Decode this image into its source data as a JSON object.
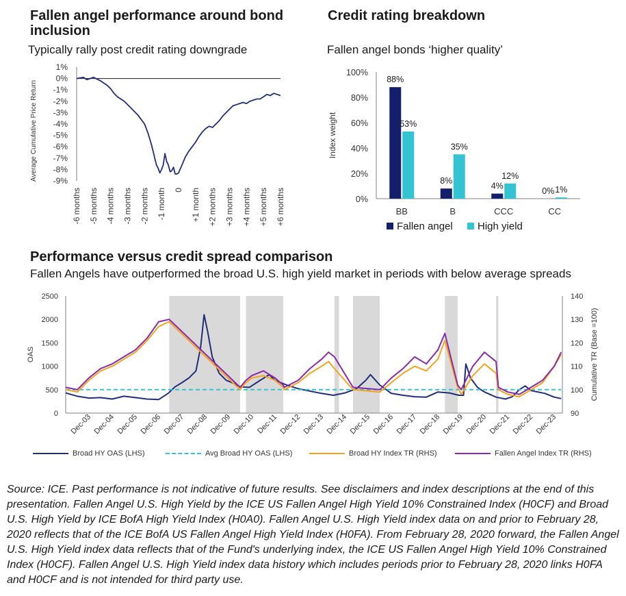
{
  "panel1": {
    "title": "Fallen angel performance around bond inclusion",
    "subtitle": "Typically rally post credit rating downgrade"
  },
  "panel2": {
    "title": "Credit rating breakdown",
    "subtitle": "Fallen angel bonds ‘higher quality’"
  },
  "panel3": {
    "title": "Performance versus credit spread comparison",
    "subtitle": "Fallen Angels have outperformed the broad U.S. high yield market in periods with below average spreads"
  },
  "source_text": "Source: ICE. Past performance is not indicative of future results. See disclaimers and index descriptions at the end of this presentation. Fallen Angel U.S. High Yield by the ICE US Fallen Angel High Yield 10% Constrained Index (H0CF) and Broad U.S. High Yield by ICE BofA High Yield Index (H0A0). Fallen Angel U.S. High Yield index data on and prior to February 28, 2020 reflects that of the ICE BofA US Fallen Angel High Yield Index (H0FA). From February 28, 2020 forward, the Fallen Angel U.S. High Yield index data reflects that of the Fund's underlying index, the ICE US Fallen Angel High Yield 10% Constrained Index (H0CF). Fallen Angel U.S. High Yield index data history which includes periods prior to February 28, 2020 links H0FA and H0CF and is not intended for third party use.",
  "chart_data": [
    {
      "type": "line",
      "ylabel": "Average Cumulative Price Return",
      "ylim": [
        -9,
        1
      ],
      "ytick_labels": [
        "1%",
        "0%",
        "-1%",
        "-2%",
        "-3%",
        "-4%",
        "-5%",
        "-6%",
        "-7%",
        "-8%",
        "-9%"
      ],
      "xtick_labels": [
        "-6 months",
        "-5 months",
        "-4 months",
        "-3 months",
        "-2 months",
        "-1 month",
        "0",
        "+1 month",
        "+2 months",
        "+3 months",
        "+4 months",
        "+5 months",
        "+6 months"
      ],
      "x": [
        -6,
        -5.8,
        -5.6,
        -5.4,
        -5.2,
        -5,
        -4.8,
        -4.6,
        -4.4,
        -4.2,
        -4,
        -3.8,
        -3.6,
        -3.4,
        -3.2,
        -3,
        -2.8,
        -2.6,
        -2.4,
        -2.2,
        -2,
        -1.8,
        -1.6,
        -1.5,
        -1.4,
        -1.3,
        -1.2,
        -1.1,
        -1,
        -0.9,
        -0.8,
        -0.7,
        -0.6,
        -0.5,
        -0.4,
        -0.3,
        -0.2,
        -0.1,
        0,
        0.2,
        0.4,
        0.6,
        0.8,
        1,
        1.2,
        1.4,
        1.6,
        1.8,
        2,
        2.2,
        2.4,
        2.6,
        2.8,
        3,
        3.2,
        3.4,
        3.6,
        3.8,
        4,
        4.2,
        4.4,
        4.6,
        4.8,
        5,
        5.2,
        5.4,
        5.6,
        5.8,
        6
      ],
      "series": [
        {
          "color": "#1f2d7a",
          "values": [
            0,
            0.05,
            0.1,
            -0.1,
            0,
            0.1,
            -0.05,
            -0.2,
            -0.4,
            -0.6,
            -0.9,
            -1.3,
            -1.6,
            -1.8,
            -2.0,
            -2.3,
            -2.6,
            -2.9,
            -3.2,
            -3.6,
            -4.0,
            -4.8,
            -5.8,
            -6.4,
            -7.0,
            -7.6,
            -7.9,
            -8.3,
            -8.0,
            -7.6,
            -6.6,
            -7.3,
            -7.6,
            -8.2,
            -8.1,
            -7.8,
            -8.4,
            -8.4,
            -8.3,
            -7.6,
            -6.9,
            -6.4,
            -6.0,
            -5.6,
            -5.1,
            -4.7,
            -4.4,
            -4.2,
            -4.3,
            -4.0,
            -3.7,
            -3.3,
            -3.0,
            -2.7,
            -2.4,
            -2.3,
            -2.2,
            -2.1,
            -2.2,
            -2.0,
            -1.9,
            -1.8,
            -1.8,
            -1.6,
            -1.4,
            -1.5,
            -1.3,
            -1.4,
            -1.5
          ]
        }
      ]
    },
    {
      "type": "bar",
      "ylabel": "Index weight",
      "ylim": [
        0,
        100
      ],
      "ytick_labels": [
        "0%",
        "20%",
        "40%",
        "60%",
        "80%",
        "100%"
      ],
      "categories": [
        "BB",
        "B",
        "CCC",
        "CC"
      ],
      "series": [
        {
          "name": "Fallen angel",
          "color": "#131f6b",
          "values": [
            88,
            8,
            4,
            0
          ],
          "labels": [
            "88%",
            "8%",
            "4%",
            "0%"
          ]
        },
        {
          "name": "High yield",
          "color": "#34c3d3",
          "values": [
            53,
            35,
            12,
            1
          ],
          "labels": [
            "53%",
            "35%",
            "12%",
            "1%"
          ]
        }
      ]
    },
    {
      "type": "line",
      "ylabel": "OAS",
      "y2label": "Cumulative TR (Base =100)",
      "ylim": [
        0,
        2500
      ],
      "y2lim": [
        90,
        140
      ],
      "ytick_labels": [
        "0",
        "500",
        "1000",
        "1500",
        "2000",
        "2500"
      ],
      "y2tick_labels": [
        "90",
        "100",
        "110",
        "120",
        "130",
        "140"
      ],
      "xtick_labels": [
        "Dec-03",
        "Dec-04",
        "Dec-05",
        "Dec-06",
        "Dec-07",
        "Dec-08",
        "Dec-09",
        "Dec-10",
        "Dec-11",
        "Dec-12",
        "Dec-13",
        "Dec-14",
        "Dec-15",
        "Dec-16",
        "Dec-17",
        "Dec-18",
        "Dec-19",
        "Dec-20",
        "Dec-21",
        "Dec-22",
        "Dec-23"
      ],
      "shaded_periods": [
        [
          2007.45,
          2010.5
        ],
        [
          2010.75,
          2012.35
        ],
        [
          2014.55,
          2014.75
        ],
        [
          2015.35,
          2016.5
        ],
        [
          2019.3,
          2019.85
        ],
        [
          2021.5,
          2021.6
        ]
      ],
      "series": [
        {
          "name": "Broad HY OAS (LHS)",
          "axis": "left",
          "color": "#1f2d7a",
          "x": [
            2003.0,
            2003.5,
            2004.0,
            2004.5,
            2005.0,
            2005.5,
            2006.0,
            2006.5,
            2007.0,
            2007.4,
            2007.7,
            2008.0,
            2008.3,
            2008.6,
            2008.8,
            2008.95,
            2009.1,
            2009.3,
            2009.6,
            2009.9,
            2010.3,
            2010.5,
            2010.9,
            2011.3,
            2011.75,
            2012.0,
            2012.5,
            2013.0,
            2013.5,
            2014.0,
            2014.5,
            2015.0,
            2015.5,
            2015.9,
            2016.1,
            2016.5,
            2017.0,
            2017.5,
            2018.0,
            2018.5,
            2019.0,
            2019.5,
            2019.9,
            2020.1,
            2020.2,
            2020.4,
            2020.7,
            2021.0,
            2021.5,
            2021.9,
            2022.2,
            2022.5,
            2022.75,
            2023.0,
            2023.3,
            2023.6,
            2024.0,
            2024.3
          ],
          "values": [
            430,
            360,
            320,
            330,
            300,
            360,
            330,
            300,
            290,
            420,
            560,
            650,
            750,
            900,
            1400,
            2100,
            1750,
            1200,
            850,
            700,
            620,
            560,
            550,
            680,
            820,
            700,
            600,
            520,
            470,
            420,
            380,
            430,
            520,
            700,
            820,
            600,
            420,
            380,
            350,
            340,
            450,
            430,
            380,
            380,
            1050,
            750,
            550,
            450,
            340,
            300,
            350,
            500,
            580,
            480,
            450,
            420,
            340,
            310
          ]
        },
        {
          "name": "Avg Broad HY OAS (LHS)",
          "axis": "left",
          "color": "#34c3d3",
          "x": [
            2003.0,
            2024.3
          ],
          "values": [
            500,
            500
          ]
        },
        {
          "name": "Broad HY Index TR (RHS)",
          "axis": "right",
          "color": "#f5a21e",
          "x": [
            2003.0,
            2003.5,
            2004.0,
            2004.5,
            2005.0,
            2005.5,
            2006.0,
            2006.5,
            2007.0,
            2007.45,
            2010.5,
            2010.75,
            2011.0,
            2011.5,
            2012.0,
            2012.35,
            2012.4,
            2013.0,
            2013.5,
            2014.0,
            2014.3,
            2014.55,
            2015.35,
            2016.5,
            2017.0,
            2017.5,
            2018.0,
            2018.5,
            2019.0,
            2019.3,
            2019.85,
            2020.0,
            2020.5,
            2021.0,
            2021.5,
            2021.6,
            2022.0,
            2022.5,
            2023.0,
            2023.5,
            2024.0,
            2024.3
          ],
          "values": [
            100,
            99,
            104,
            108,
            110,
            113,
            116,
            121,
            127,
            129,
            100,
            103,
            105,
            106,
            104,
            101,
            100,
            103,
            107,
            110,
            112,
            109,
            100,
            99,
            103,
            107,
            110,
            108,
            113,
            121,
            101,
            98,
            106,
            111,
            107,
            100,
            98,
            97,
            100,
            103,
            110,
            115
          ]
        },
        {
          "name": "Fallen Angel Index TR (RHS)",
          "axis": "right",
          "color": "#8a2aa8",
          "x": [
            2003.0,
            2003.5,
            2004.0,
            2004.5,
            2005.0,
            2005.5,
            2006.0,
            2006.5,
            2007.0,
            2007.45,
            2010.5,
            2010.75,
            2011.0,
            2011.5,
            2012.0,
            2012.35,
            2012.4,
            2013.0,
            2013.5,
            2014.0,
            2014.3,
            2014.55,
            2015.35,
            2016.5,
            2017.0,
            2017.5,
            2018.0,
            2018.5,
            2019.0,
            2019.3,
            2019.85,
            2020.0,
            2020.5,
            2021.0,
            2021.5,
            2021.6,
            2022.0,
            2022.5,
            2023.0,
            2023.5,
            2024.0,
            2024.3
          ],
          "values": [
            101,
            100,
            105,
            109,
            111,
            114,
            117,
            122,
            129,
            130,
            101,
            104,
            106,
            108,
            105,
            102,
            101,
            104,
            109,
            113,
            116,
            114,
            101,
            100,
            105,
            109,
            114,
            111,
            117,
            124,
            102,
            100,
            110,
            116,
            112,
            101,
            99,
            98,
            101,
            104,
            110,
            116
          ]
        }
      ]
    }
  ]
}
